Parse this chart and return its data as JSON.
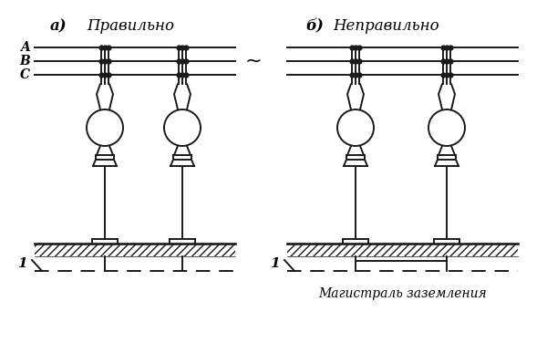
{
  "bg_color": "#ffffff",
  "line_color": "#1a1a1a",
  "title_a": "а)",
  "title_b": "б)",
  "pravil": "Правильно",
  "nepravil": "Неправильно",
  "label_A": "A",
  "label_B": "B",
  "label_C": "C",
  "label_1": "1",
  "tilde": "~",
  "ground_label": "Магистраль заземления",
  "font_size_title": 12,
  "font_size_label": 10,
  "font_size_ground": 9,
  "lw": 1.4
}
